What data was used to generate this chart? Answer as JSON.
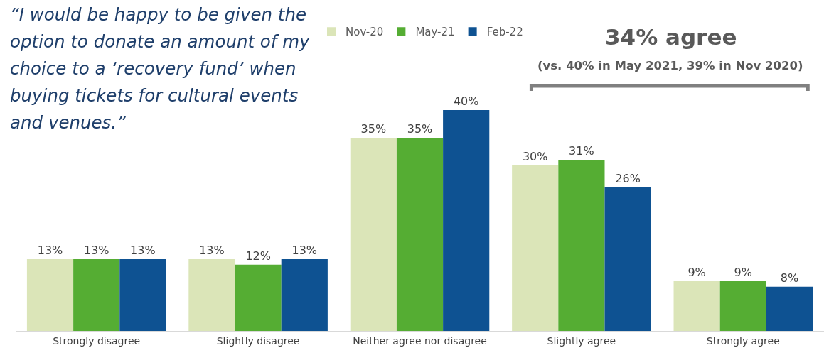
{
  "chart_data": {
    "type": "bar",
    "title": "“I would be happy to be given the option to donate an amount of my choice to a ‘recovery fund’ when buying tickets for cultural events and venues.”",
    "categories": [
      "Strongly disagree",
      "Slightly disagree",
      "Neither agree nor disagree",
      "Slightly agree",
      "Strongly agree"
    ],
    "series": [
      {
        "name": "Nov-20",
        "color": "#dbe5b8",
        "values": [
          13,
          13,
          35,
          30,
          9
        ],
        "value_labels": [
          "13%",
          "13%",
          "35%",
          "30%",
          "9%"
        ]
      },
      {
        "name": "May-21",
        "color": "#55ad33",
        "values": [
          13,
          12,
          35,
          31,
          9
        ],
        "value_labels": [
          "13%",
          "12%",
          "35%",
          "31%",
          "9%"
        ]
      },
      {
        "name": "Feb-22",
        "color": "#0e5292",
        "values": [
          13,
          13,
          40,
          26,
          8
        ],
        "value_labels": [
          "13%",
          "13%",
          "40%",
          "26%",
          "8%"
        ]
      }
    ],
    "annotations": [
      "34% agree",
      "(vs. 40% in May 2021, 39% in Nov 2020)"
    ],
    "legend": "top"
  }
}
